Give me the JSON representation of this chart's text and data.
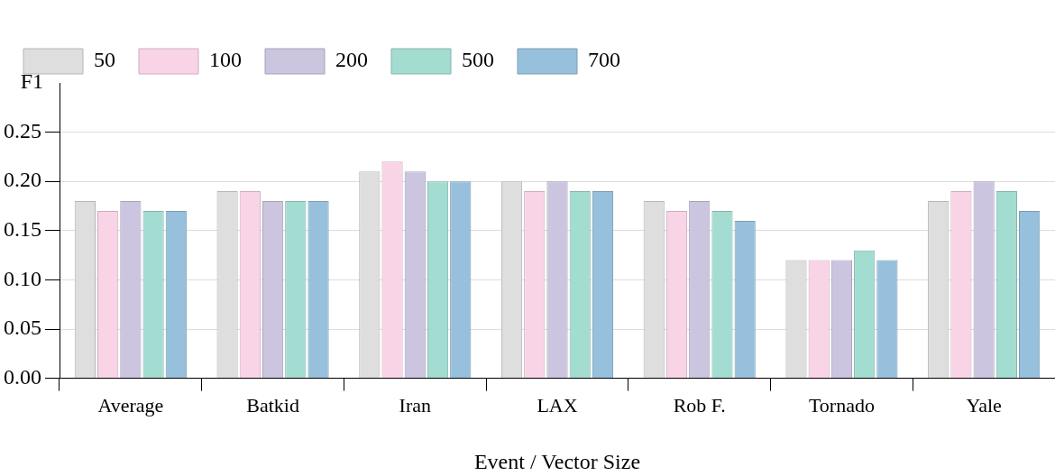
{
  "chart_data": {
    "type": "bar",
    "xlabel": "Event / Vector Size",
    "ylabel": "F1",
    "categories": [
      "Average",
      "Batkid",
      "Iran",
      "LAX",
      "Rob F.",
      "Tornado",
      "Yale"
    ],
    "series": [
      {
        "name": "50",
        "color": "#dedede",
        "values": [
          0.18,
          0.19,
          0.21,
          0.2,
          0.18,
          0.12,
          0.18
        ]
      },
      {
        "name": "100",
        "color": "#f9d4e6",
        "values": [
          0.17,
          0.19,
          0.22,
          0.19,
          0.17,
          0.12,
          0.19
        ]
      },
      {
        "name": "200",
        "color": "#cbc5e0",
        "values": [
          0.18,
          0.18,
          0.21,
          0.2,
          0.18,
          0.12,
          0.2
        ]
      },
      {
        "name": "500",
        "color": "#a3dcd1",
        "values": [
          0.17,
          0.18,
          0.2,
          0.19,
          0.17,
          0.13,
          0.19
        ]
      },
      {
        "name": "700",
        "color": "#97c0dc",
        "values": [
          0.17,
          0.18,
          0.2,
          0.19,
          0.16,
          0.12,
          0.17
        ]
      }
    ],
    "ylim": [
      0,
      0.3
    ],
    "yticks": [
      {
        "value": 0,
        "label": "0.00"
      },
      {
        "value": 0.05,
        "label": "0.05"
      },
      {
        "value": 0.1,
        "label": "0.10"
      },
      {
        "value": 0.15,
        "label": "0.15"
      },
      {
        "value": 0.2,
        "label": "0.20"
      },
      {
        "value": 0.25,
        "label": "0.25"
      }
    ],
    "grid": "y",
    "legend": "top left"
  }
}
